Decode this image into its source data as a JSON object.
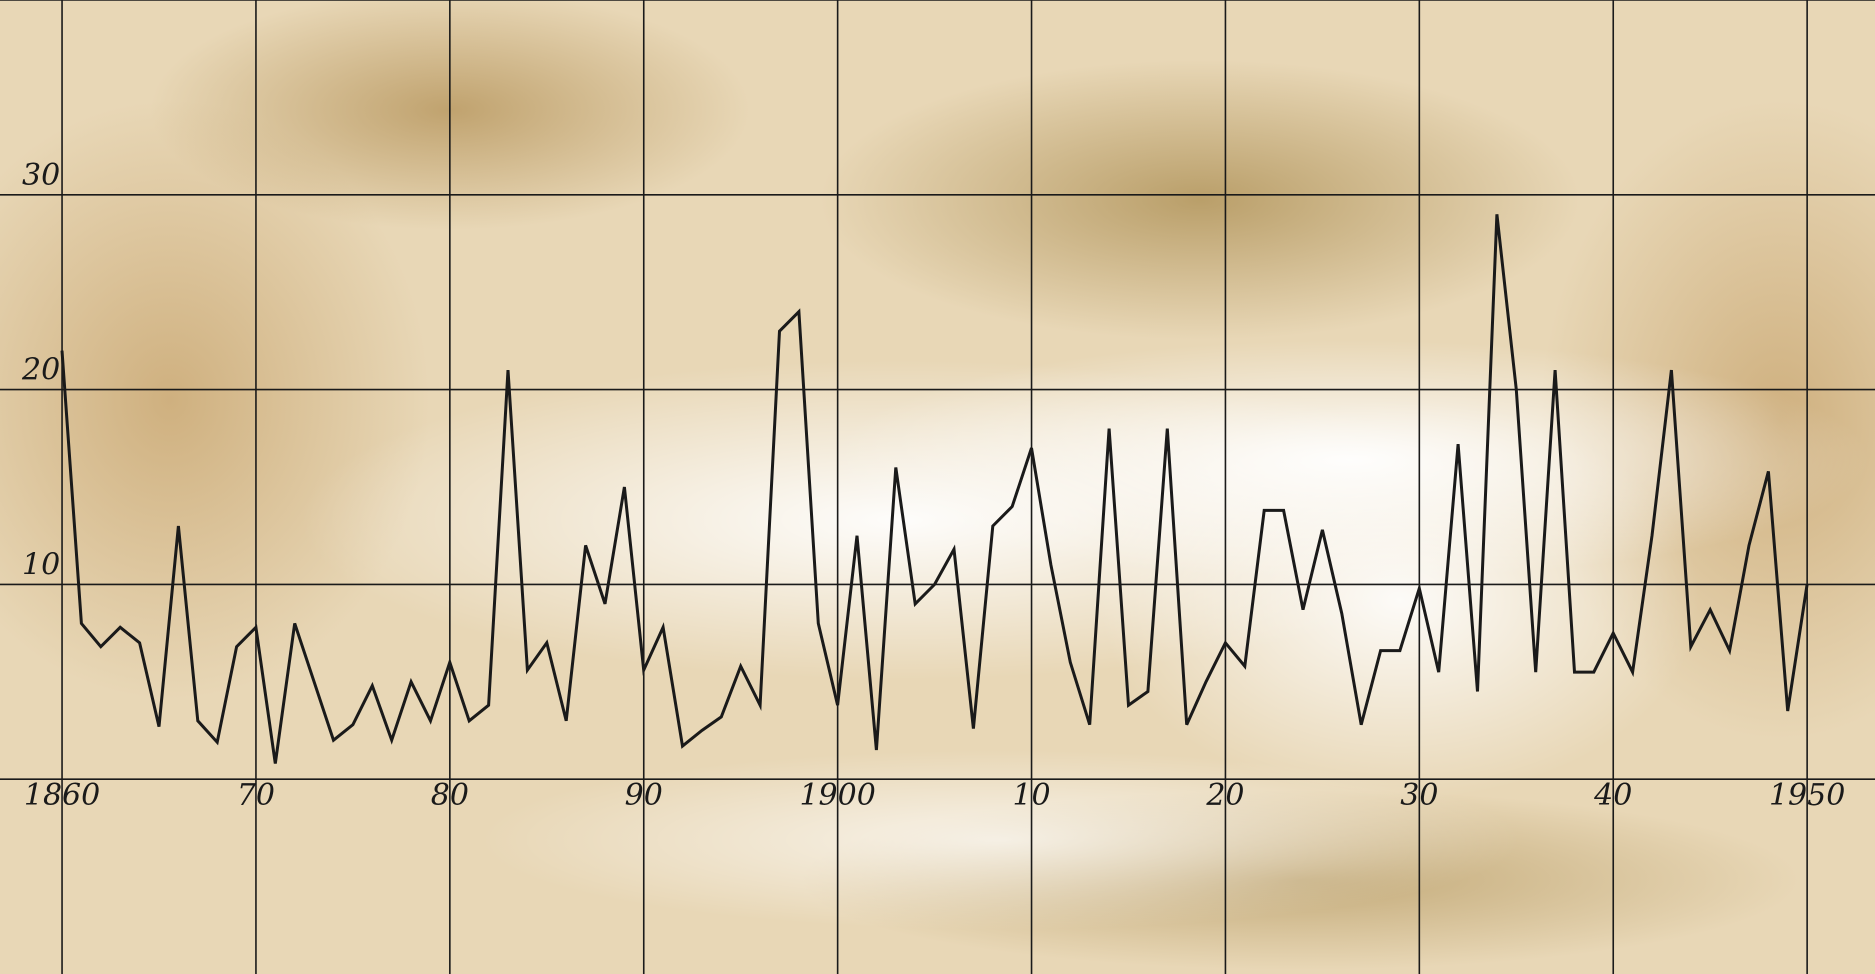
{
  "chart_data": {
    "type": "line",
    "x": [
      1860,
      1861,
      1862,
      1863,
      1864,
      1865,
      1866,
      1867,
      1868,
      1869,
      1870,
      1871,
      1872,
      1873,
      1874,
      1875,
      1876,
      1877,
      1878,
      1879,
      1880,
      1881,
      1882,
      1883,
      1884,
      1885,
      1886,
      1887,
      1888,
      1889,
      1890,
      1891,
      1892,
      1893,
      1894,
      1895,
      1896,
      1897,
      1898,
      1899,
      1900,
      1901,
      1902,
      1903,
      1904,
      1905,
      1906,
      1907,
      1908,
      1909,
      1910,
      1911,
      1912,
      1913,
      1914,
      1915,
      1916,
      1917,
      1918,
      1919,
      1920,
      1921,
      1922,
      1923,
      1924,
      1925,
      1926,
      1927,
      1928,
      1929,
      1930,
      1931,
      1932,
      1933,
      1934,
      1935,
      1936,
      1937,
      1938,
      1939,
      1940,
      1941,
      1942,
      1943,
      1944,
      1945,
      1946,
      1947,
      1948,
      1949,
      1950
    ],
    "values": [
      22,
      8,
      6.8,
      7.8,
      7,
      2.7,
      13,
      3,
      1.9,
      6.8,
      7.8,
      0.8,
      8,
      5,
      2,
      2.8,
      4.8,
      2,
      5,
      3,
      6,
      3,
      3.8,
      21,
      5.6,
      7,
      3,
      12,
      9,
      15,
      5.6,
      7.8,
      1.7,
      2.5,
      3.2,
      5.8,
      3.8,
      23,
      24,
      8,
      3.8,
      12.5,
      1.5,
      16,
      9,
      10,
      11.8,
      2.6,
      13,
      14,
      17,
      11,
      6,
      2.8,
      18,
      3.8,
      4.5,
      18,
      2.8,
      5,
      7,
      5.8,
      13.8,
      13.8,
      8.7,
      12.8,
      8.5,
      2.8,
      6.6,
      6.6,
      9.8,
      5.5,
      17.2,
      4.5,
      29,
      20,
      5.5,
      21,
      5.5,
      5.5,
      7.5,
      5.5,
      12.5,
      21,
      6.8,
      8.7,
      6.6,
      12,
      15.8,
      3.5,
      10
    ],
    "color": "#1a1a1a",
    "xlim": [
      1856.8,
      1953.5
    ],
    "ylim": [
      -10,
      40
    ],
    "xticks": [
      {
        "value": 1860,
        "label": "1860"
      },
      {
        "value": 1870,
        "label": "70"
      },
      {
        "value": 1880,
        "label": "80"
      },
      {
        "value": 1890,
        "label": "90"
      },
      {
        "value": 1900,
        "label": "1900"
      },
      {
        "value": 1910,
        "label": "10"
      },
      {
        "value": 1920,
        "label": "20"
      },
      {
        "value": 1930,
        "label": "30"
      },
      {
        "value": 1940,
        "label": "40"
      },
      {
        "value": 1950,
        "label": "1950"
      }
    ],
    "yticks": [
      {
        "value": 0,
        "label": null
      },
      10,
      20,
      30,
      {
        "value": 40,
        "label": null
      }
    ],
    "grid": true
  }
}
